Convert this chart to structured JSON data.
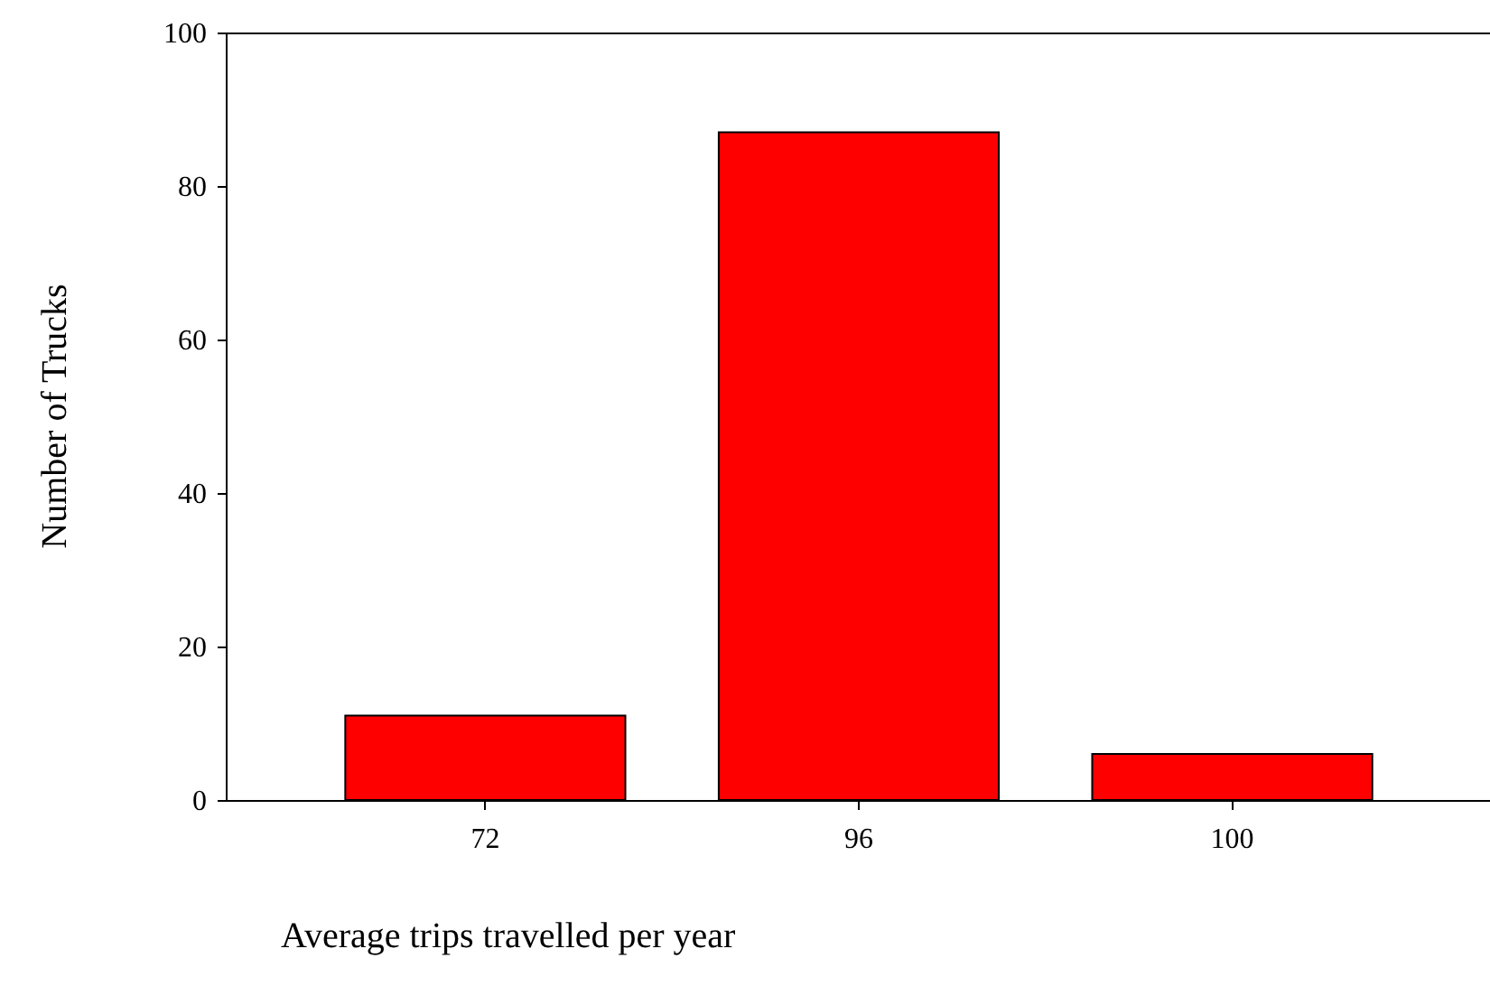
{
  "chart_data": {
    "type": "bar",
    "xlabel": "Average trips travelled per year",
    "ylabel": "Number of Trucks",
    "categories": [
      "72",
      "96",
      "100"
    ],
    "values": [
      11,
      87,
      6
    ],
    "color": "#ff0000",
    "ylim": [
      0,
      100
    ],
    "yticks": [
      0,
      20,
      40,
      60,
      80,
      100
    ],
    "grid": false
  }
}
